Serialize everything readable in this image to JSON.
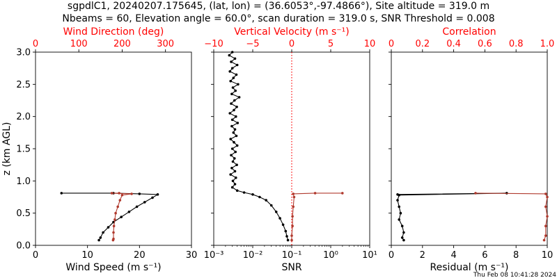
{
  "figure": {
    "title_line1": "sgpdlC1, 20240207.175645, (lat, lon) = (36.6053°,-97.4866°), Site altitude = 319.0 m",
    "title_line2": "Nbeams = 60, Elevation angle = 60.0°, scan duration = 319.0 s, SNR Threshold = 0.008",
    "timestamp": "Thu Feb 08 10:41:28 2024",
    "ylabel": "z (km AGL)",
    "colors": {
      "primary": "#000000",
      "secondary": "#ff0000",
      "secondary_line": "#b03a2e"
    }
  },
  "chart_data": [
    {
      "type": "line",
      "panel": "left",
      "xlabel": "Wind Speed (m s⁻¹)",
      "xlim": [
        0,
        30
      ],
      "xticks": [
        "0",
        "10",
        "20",
        "30"
      ],
      "top_xlabel": "Wind Direction (deg)",
      "top_xlim": [
        0,
        360
      ],
      "top_xticks": [
        "0",
        "100",
        "200",
        "300"
      ],
      "ylim": [
        0,
        3.0
      ],
      "yticks": [
        "0.0",
        "0.5",
        "1.0",
        "1.5",
        "2.0",
        "2.5",
        "3.0"
      ],
      "series": [
        {
          "axis": "bottom",
          "color": "#000000",
          "points": [
            [
              5.0,
              0.81
            ],
            [
              15.0,
              0.81
            ],
            [
              20.0,
              0.8
            ],
            [
              23.5,
              0.79
            ],
            [
              22.5,
              0.74
            ],
            [
              21.0,
              0.67
            ],
            [
              19.5,
              0.6
            ],
            [
              18.0,
              0.52
            ],
            [
              16.5,
              0.44
            ],
            [
              15.0,
              0.36
            ],
            [
              14.0,
              0.28
            ],
            [
              13.0,
              0.2
            ],
            [
              12.5,
              0.12
            ],
            [
              12.2,
              0.08
            ]
          ]
        },
        {
          "axis": "top",
          "color": "#b03a2e",
          "points": [
            [
              193,
              0.81
            ],
            [
              176,
              0.81
            ],
            [
              222,
              0.8
            ],
            [
              200,
              0.78
            ],
            [
              195,
              0.7
            ],
            [
              190,
              0.6
            ],
            [
              185,
              0.5
            ],
            [
              183,
              0.4
            ],
            [
              181,
              0.3
            ],
            [
              180,
              0.2
            ],
            [
              180,
              0.1
            ],
            [
              179,
              0.08
            ]
          ]
        }
      ]
    },
    {
      "type": "line",
      "panel": "middle",
      "xlabel": "SNR",
      "xscale": "log",
      "xlim": [
        0.001,
        10
      ],
      "xticks": [
        "10⁻³",
        "10⁻²",
        "10⁻¹",
        "10⁰",
        "10¹"
      ],
      "top_xlabel": "Vertical Velocity (m s⁻¹)",
      "top_xlim": [
        -10,
        10
      ],
      "top_xticks": [
        "−10",
        "−5",
        "0",
        "5",
        "10"
      ],
      "ylim": [
        0,
        3.0
      ],
      "series": [
        {
          "axis": "bottom",
          "color": "#000000",
          "points": [
            [
              0.003,
              3.0
            ],
            [
              0.0025,
              2.95
            ],
            [
              0.0035,
              2.9
            ],
            [
              0.0028,
              2.85
            ],
            [
              0.004,
              2.8
            ],
            [
              0.003,
              2.75
            ],
            [
              0.0026,
              2.7
            ],
            [
              0.0038,
              2.65
            ],
            [
              0.0032,
              2.6
            ],
            [
              0.0027,
              2.55
            ],
            [
              0.0042,
              2.5
            ],
            [
              0.0031,
              2.45
            ],
            [
              0.0036,
              2.4
            ],
            [
              0.0029,
              2.35
            ],
            [
              0.0045,
              2.3
            ],
            [
              0.0034,
              2.25
            ],
            [
              0.0028,
              2.2
            ],
            [
              0.0039,
              2.15
            ],
            [
              0.0033,
              2.1
            ],
            [
              0.0026,
              2.05
            ],
            [
              0.0037,
              2.0
            ],
            [
              0.003,
              1.95
            ],
            [
              0.0041,
              1.9
            ],
            [
              0.0029,
              1.85
            ],
            [
              0.0035,
              1.8
            ],
            [
              0.0032,
              1.75
            ],
            [
              0.0038,
              1.7
            ],
            [
              0.0027,
              1.65
            ],
            [
              0.0033,
              1.6
            ],
            [
              0.004,
              1.55
            ],
            [
              0.003,
              1.5
            ],
            [
              0.0036,
              1.45
            ],
            [
              0.0028,
              1.4
            ],
            [
              0.0034,
              1.35
            ],
            [
              0.0031,
              1.3
            ],
            [
              0.0039,
              1.25
            ],
            [
              0.0029,
              1.2
            ],
            [
              0.0035,
              1.15
            ],
            [
              0.0027,
              1.1
            ],
            [
              0.0037,
              1.05
            ],
            [
              0.0031,
              1.0
            ],
            [
              0.0035,
              0.95
            ],
            [
              0.003,
              0.9
            ],
            [
              0.004,
              0.85
            ],
            [
              0.006,
              0.82
            ],
            [
              0.01,
              0.79
            ],
            [
              0.015,
              0.75
            ],
            [
              0.022,
              0.7
            ],
            [
              0.03,
              0.62
            ],
            [
              0.04,
              0.52
            ],
            [
              0.05,
              0.42
            ],
            [
              0.06,
              0.32
            ],
            [
              0.07,
              0.22
            ],
            [
              0.075,
              0.14
            ],
            [
              0.08,
              0.08
            ]
          ]
        },
        {
          "axis": "top",
          "color": "#b03a2e",
          "points": [
            [
              6.5,
              0.81
            ],
            [
              3.0,
              0.81
            ],
            [
              0.2,
              0.8
            ],
            [
              0.3,
              0.75
            ],
            [
              0.2,
              0.6
            ],
            [
              0.1,
              0.45
            ],
            [
              0.1,
              0.3
            ],
            [
              0.0,
              0.15
            ],
            [
              0.0,
              0.08
            ]
          ]
        }
      ],
      "reference_line": {
        "axis": "top",
        "x": 0,
        "style": "dotted",
        "color": "#ff0000"
      }
    },
    {
      "type": "line",
      "panel": "right",
      "xlabel": "Residual (m s⁻¹)",
      "xlim": [
        0,
        10
      ],
      "xticks": [
        "0",
        "2",
        "4",
        "6",
        "8",
        "10"
      ],
      "top_xlabel": "Correlation",
      "top_xlim": [
        0,
        1.0
      ],
      "top_xticks": [
        "0",
        "0.2",
        "0.4",
        "0.6",
        "0.8",
        "1.0"
      ],
      "ylim": [
        0,
        3.0
      ],
      "series": [
        {
          "axis": "bottom",
          "color": "#000000",
          "points": [
            [
              0.4,
              0.79
            ],
            [
              7.4,
              0.81
            ],
            [
              0.5,
              0.78
            ],
            [
              0.4,
              0.7
            ],
            [
              0.5,
              0.6
            ],
            [
              0.6,
              0.5
            ],
            [
              0.5,
              0.4
            ],
            [
              0.7,
              0.3
            ],
            [
              0.8,
              0.2
            ],
            [
              0.7,
              0.12
            ],
            [
              0.8,
              0.08
            ]
          ]
        },
        {
          "axis": "top",
          "color": "#b03a2e",
          "points": [
            [
              0.54,
              0.81
            ],
            [
              0.99,
              0.8
            ],
            [
              1.0,
              0.75
            ],
            [
              0.99,
              0.6
            ],
            [
              1.0,
              0.45
            ],
            [
              0.99,
              0.3
            ],
            [
              0.99,
              0.15
            ],
            [
              0.98,
              0.08
            ]
          ]
        }
      ]
    }
  ]
}
